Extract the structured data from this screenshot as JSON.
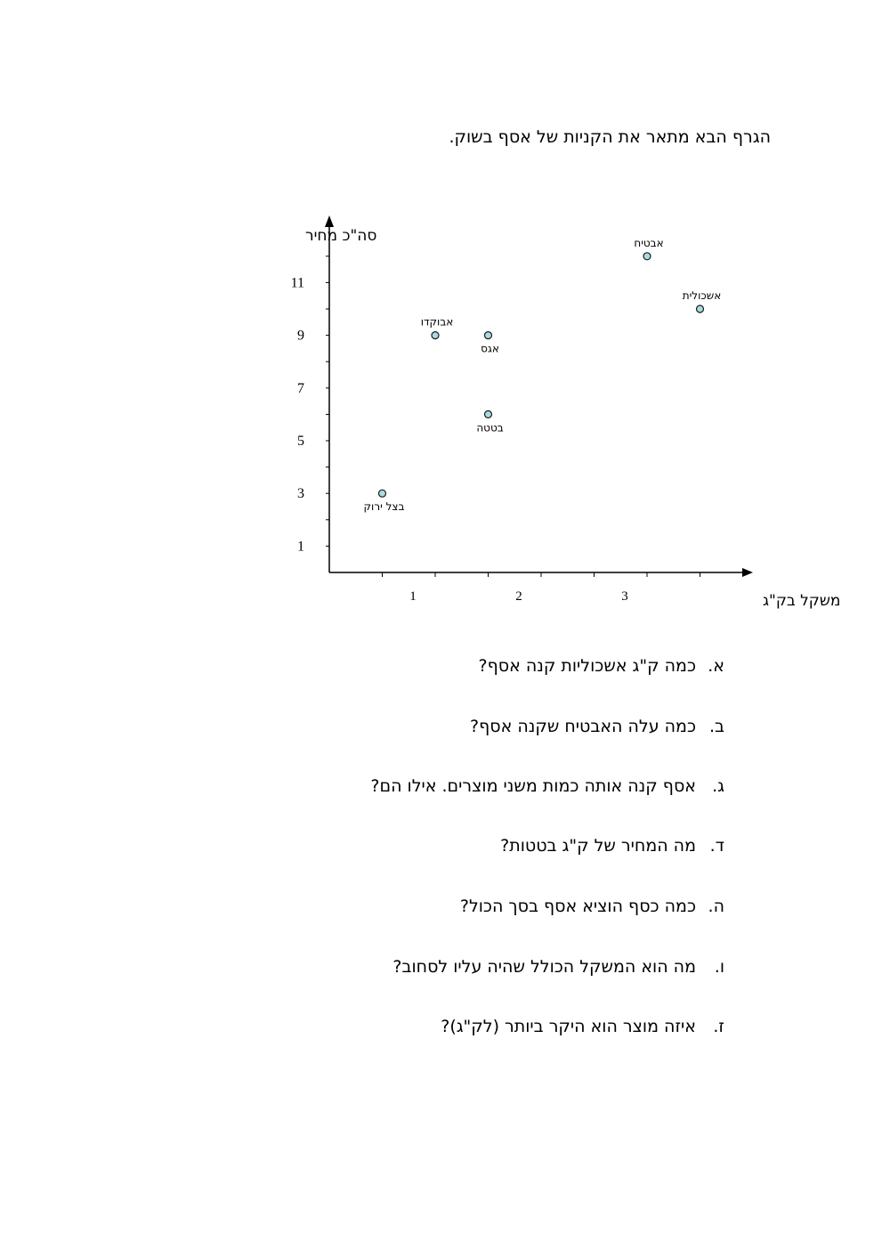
{
  "intro": "הגרף הבא מתאר את הקניות של אסף בשוק.",
  "chart_data": {
    "type": "scatter",
    "title": "",
    "xlabel": "משקל בק\"ג",
    "ylabel": "סה\"כ מחיר",
    "xlim": [
      0,
      4
    ],
    "ylim": [
      0,
      13
    ],
    "x_tick_step": 0.5,
    "y_tick_step": 1,
    "x_tick_labels": [
      {
        "value": 1,
        "label": "1"
      },
      {
        "value": 2,
        "label": "2"
      },
      {
        "value": 3,
        "label": "3"
      }
    ],
    "y_tick_labels": [
      {
        "value": 1,
        "label": "1"
      },
      {
        "value": 3,
        "label": "3"
      },
      {
        "value": 5,
        "label": "5"
      },
      {
        "value": 7,
        "label": "7"
      },
      {
        "value": 9,
        "label": "9"
      },
      {
        "value": 11,
        "label": "11"
      }
    ],
    "grid": false,
    "marker_fill": "#a8dce0",
    "marker_stroke": "#1a1a1a",
    "points": [
      {
        "label": "בצל ירוק",
        "x": 0.5,
        "y": 3,
        "label_pos": "below"
      },
      {
        "label": "אבוקדו",
        "x": 1,
        "y": 9,
        "label_pos": "above"
      },
      {
        "label": "אגס",
        "x": 1.5,
        "y": 9,
        "label_pos": "below"
      },
      {
        "label": "בטטה",
        "x": 1.5,
        "y": 6,
        "label_pos": "below"
      },
      {
        "label": "אבטיח",
        "x": 3,
        "y": 12,
        "label_pos": "above"
      },
      {
        "label": "אשכולית",
        "x": 3.5,
        "y": 10,
        "label_pos": "above"
      }
    ]
  },
  "questions": [
    {
      "letter": "א.",
      "text": "כמה ק\"ג אשכוליות קנה אסף?"
    },
    {
      "letter": "ב.",
      "text": "כמה עלה האבטיח שקנה אסף?"
    },
    {
      "letter": "ג.",
      "text": "אסף קנה אותה כמות משני מוצרים. אילו הם?"
    },
    {
      "letter": "ד.",
      "text": "מה המחיר של ק\"ג בטטות?"
    },
    {
      "letter": "ה.",
      "text": "כמה כסף הוציא אסף בסך הכול?"
    },
    {
      "letter": "ו.",
      "text": "מה הוא המשקל הכולל שהיה עליו לסחוב?"
    },
    {
      "letter": "ז.",
      "text": "איזה מוצר הוא היקר ביותר (לק\"ג)?"
    }
  ]
}
